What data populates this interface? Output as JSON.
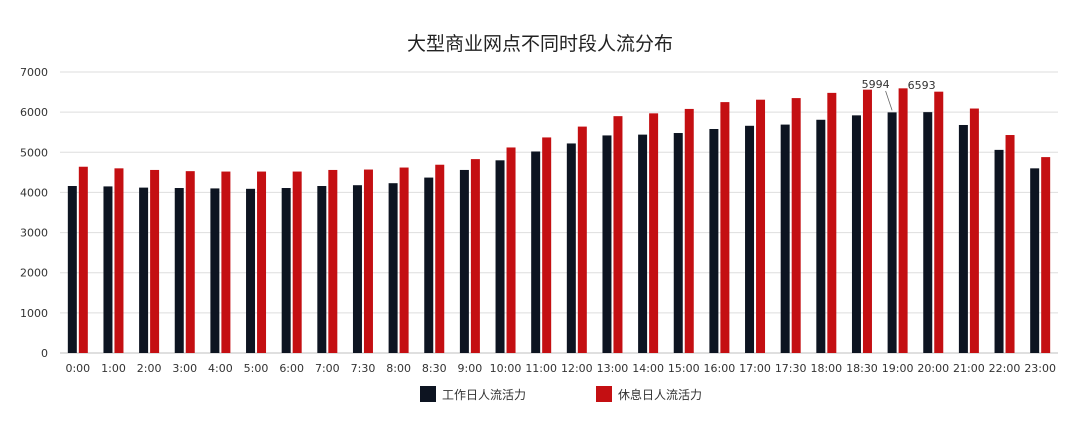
{
  "chart_data": {
    "type": "bar",
    "title": "大型商业网点不同时段人流分布",
    "xlabel": "",
    "ylabel": "",
    "ylim": [
      0,
      7000
    ],
    "yticks": [
      0,
      1000,
      2000,
      3000,
      4000,
      5000,
      6000,
      7000
    ],
    "grid": true,
    "legend_position": "bottom",
    "categories": [
      "0:00",
      "1:00",
      "2:00",
      "3:00",
      "4:00",
      "5:00",
      "6:00",
      "7:00",
      "7:30",
      "8:00",
      "8:30",
      "9:00",
      "10:00",
      "11:00",
      "12:00",
      "13:00",
      "14:00",
      "15:00",
      "16:00",
      "17:00",
      "17:30",
      "18:00",
      "18:30",
      "19:00",
      "20:00",
      "21:00",
      "22:00",
      "23:00"
    ],
    "series": [
      {
        "name": "工作日人流活力",
        "color": "#0d1421",
        "values": [
          4160,
          4150,
          4120,
          4110,
          4100,
          4090,
          4110,
          4160,
          4180,
          4230,
          4370,
          4560,
          4800,
          5020,
          5220,
          5420,
          5440,
          5480,
          5580,
          5660,
          5690,
          5810,
          5920,
          5994,
          6000,
          5680,
          5060,
          4600
        ]
      },
      {
        "name": "休息日人流活力",
        "color": "#c40f12",
        "values": [
          4640,
          4600,
          4560,
          4530,
          4520,
          4520,
          4520,
          4560,
          4570,
          4620,
          4690,
          4830,
          5120,
          5370,
          5640,
          5900,
          5970,
          6080,
          6250,
          6310,
          6350,
          6480,
          6560,
          6593,
          6510,
          6090,
          5430,
          4880
        ]
      }
    ],
    "annotations": [
      {
        "text": "5994",
        "category": "19:00",
        "series": 0
      },
      {
        "text": "6593",
        "category": "19:00",
        "series": 1
      }
    ]
  }
}
